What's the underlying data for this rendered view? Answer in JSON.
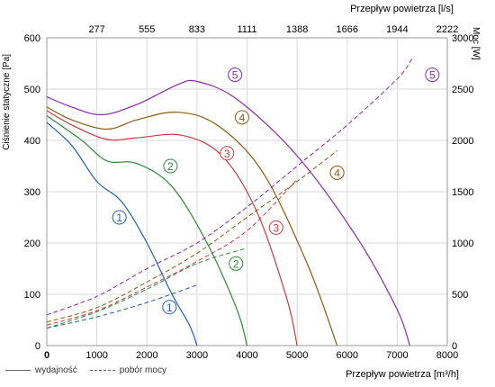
{
  "chart_data": {
    "type": "line",
    "x_unit_label": "Przepływ powietrza [m³/h]",
    "x2_label": "Przepływ powietrza [l/s]",
    "y_label": "Ciśnienie statyczne [Pa]",
    "y2_label": "Moc [W]",
    "xlim": [
      0,
      8000
    ],
    "ylim": [
      0,
      600
    ],
    "y2lim": [
      0,
      3000
    ],
    "x_ticks": [
      "0",
      "1000",
      "2000",
      "3000",
      "4000",
      "5000",
      "6000",
      "7000",
      "8000"
    ],
    "y_ticks": [
      "0",
      "100",
      "200",
      "300",
      "400",
      "500",
      "600"
    ],
    "y2_ticks": [
      "0",
      "500",
      "1000",
      "1500",
      "2000",
      "2500",
      "3000"
    ],
    "x2_ticks": [
      "277",
      "555",
      "833",
      "1111",
      "1388",
      "1666",
      "1944",
      "2222"
    ],
    "legend": {
      "solid": "wydajność",
      "dashed": "pobór mocy"
    },
    "series": [
      {
        "label": "1",
        "color": "#1f5fb4",
        "pressure": [
          [
            0,
            435
          ],
          [
            500,
            390
          ],
          [
            1000,
            320
          ],
          [
            1500,
            280
          ],
          [
            2000,
            200
          ],
          [
            2500,
            100
          ],
          [
            2850,
            40
          ],
          [
            3000,
            0
          ]
        ],
        "power": [
          [
            0,
            170
          ],
          [
            1000,
            280
          ],
          [
            2000,
            420
          ],
          [
            3000,
            590
          ]
        ],
        "pressure_label_at": [
          1450,
          250
        ],
        "power_label_at": [
          2450,
          75
        ]
      },
      {
        "label": "2",
        "color": "#2e8b3a",
        "pressure": [
          [
            0,
            448
          ],
          [
            700,
            400
          ],
          [
            1200,
            360
          ],
          [
            1800,
            355
          ],
          [
            2500,
            310
          ],
          [
            3200,
            200
          ],
          [
            3800,
            70
          ],
          [
            4000,
            0
          ]
        ],
        "power": [
          [
            0,
            170
          ],
          [
            1000,
            330
          ],
          [
            2000,
            550
          ],
          [
            3000,
            800
          ],
          [
            4000,
            950
          ]
        ],
        "pressure_label_at": [
          2470,
          350
        ],
        "power_label_at": [
          3780,
          160
        ]
      },
      {
        "label": "3",
        "color": "#d0393f",
        "pressure": [
          [
            0,
            458
          ],
          [
            500,
            430
          ],
          [
            1200,
            402
          ],
          [
            1800,
            405
          ],
          [
            2700,
            410
          ],
          [
            3500,
            370
          ],
          [
            4200,
            260
          ],
          [
            4800,
            90
          ],
          [
            5000,
            0
          ]
        ],
        "power": [
          [
            0,
            200
          ],
          [
            1000,
            340
          ],
          [
            2000,
            570
          ],
          [
            3000,
            820
          ],
          [
            4000,
            1120
          ],
          [
            5000,
            1620
          ]
        ],
        "pressure_label_at": [
          3600,
          375
        ],
        "power_label_at": [
          4580,
          230
        ]
      },
      {
        "label": "4",
        "color": "#8a5a10",
        "pressure": [
          [
            0,
            465
          ],
          [
            500,
            440
          ],
          [
            1200,
            422
          ],
          [
            1800,
            440
          ],
          [
            2600,
            455
          ],
          [
            3400,
            430
          ],
          [
            4300,
            340
          ],
          [
            5200,
            160
          ],
          [
            5800,
            0
          ]
        ],
        "power": [
          [
            0,
            230
          ],
          [
            1000,
            370
          ],
          [
            2000,
            620
          ],
          [
            3000,
            900
          ],
          [
            4000,
            1250
          ],
          [
            5000,
            1600
          ],
          [
            5800,
            1900
          ]
        ],
        "pressure_label_at": [
          3900,
          445
        ],
        "power_label_at": [
          5800,
          337
        ]
      },
      {
        "label": "5",
        "color": "#8a2aa6",
        "pressure": [
          [
            0,
            485
          ],
          [
            500,
            465
          ],
          [
            1100,
            450
          ],
          [
            1800,
            470
          ],
          [
            2600,
            508
          ],
          [
            3000,
            515
          ],
          [
            3800,
            480
          ],
          [
            5000,
            370
          ],
          [
            6200,
            210
          ],
          [
            7000,
            70
          ],
          [
            7250,
            0
          ]
        ],
        "power": [
          [
            0,
            300
          ],
          [
            1000,
            480
          ],
          [
            2000,
            750
          ],
          [
            3000,
            1000
          ],
          [
            4000,
            1350
          ],
          [
            5000,
            1750
          ],
          [
            6000,
            2150
          ],
          [
            7000,
            2600
          ],
          [
            7300,
            2800
          ]
        ],
        "pressure_label_at": [
          3760,
          528
        ],
        "power_label_at": [
          7700,
          528
        ]
      }
    ]
  }
}
